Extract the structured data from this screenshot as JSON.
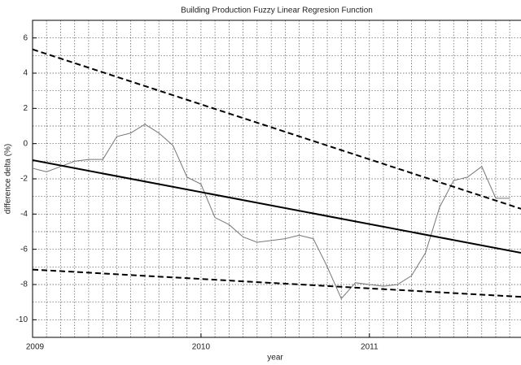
{
  "chart_data": {
    "type": "line",
    "title": "Building Production Fuzzy Linear Regresion Function",
    "xlabel": "year",
    "ylabel": "difference delta (%)",
    "xlim": [
      2009,
      2011.9
    ],
    "ylim": [
      -11,
      7
    ],
    "xticks": [
      2009,
      2010,
      2011
    ],
    "yticks": [
      -10,
      -8,
      -6,
      -4,
      -2,
      0,
      2,
      4,
      6
    ],
    "minor_xticks": [
      2009.083,
      2009.167,
      2009.25,
      2009.333,
      2009.417,
      2009.5,
      2009.583,
      2009.667,
      2009.75,
      2009.833,
      2009.917,
      2010.083,
      2010.167,
      2010.25,
      2010.333,
      2010.417,
      2010.5,
      2010.583,
      2010.667,
      2010.75,
      2010.833,
      2010.917,
      2011.083,
      2011.167,
      2011.25,
      2011.333,
      2011.417,
      2011.5,
      2011.583,
      2011.667,
      2011.75,
      2011.833
    ],
    "minor_yticks": [
      -11,
      -9,
      -7,
      -5,
      -3,
      -1,
      1,
      3,
      5,
      7
    ],
    "grid": true,
    "series": [
      {
        "color": "#777777",
        "style": "solid",
        "width": 1,
        "x": [
          2009,
          2009.083,
          2009.167,
          2009.25,
          2009.333,
          2009.417,
          2009.5,
          2009.583,
          2009.667,
          2009.75,
          2009.833,
          2009.917,
          2010,
          2010.083,
          2010.167,
          2010.25,
          2010.333,
          2010.417,
          2010.5,
          2010.583,
          2010.667,
          2010.75,
          2010.833,
          2010.917,
          2011,
          2011.083,
          2011.167,
          2011.25,
          2011.333,
          2011.417,
          2011.5,
          2011.583,
          2011.667,
          2011.75,
          2011.833
        ],
        "values": [
          -1.4,
          -1.6,
          -1.3,
          -1.0,
          -0.9,
          -0.9,
          0.4,
          0.6,
          1.1,
          0.6,
          -0.1,
          -1.9,
          -2.3,
          -4.2,
          -4.6,
          -5.3,
          -5.6,
          -5.5,
          -5.4,
          -5.2,
          -5.4,
          -7.0,
          -8.8,
          -7.9,
          -8.0,
          -8.1,
          -8.0,
          -7.5,
          -6.2,
          -3.6,
          -2.1,
          -1.9,
          -1.3,
          -3.1,
          -3.1
        ]
      },
      {
        "color": "#000000",
        "style": "solid",
        "width": 2,
        "x": [
          2009,
          2011.9
        ],
        "values": [
          -0.94,
          -6.2
        ]
      },
      {
        "color": "#000000",
        "style": "dashed",
        "width": 2,
        "x": [
          2009,
          2011.9
        ],
        "values": [
          5.35,
          -3.7
        ]
      },
      {
        "color": "#000000",
        "style": "dashed",
        "width": 2,
        "x": [
          2009,
          2011.9
        ],
        "values": [
          -7.15,
          -8.7
        ]
      }
    ]
  }
}
